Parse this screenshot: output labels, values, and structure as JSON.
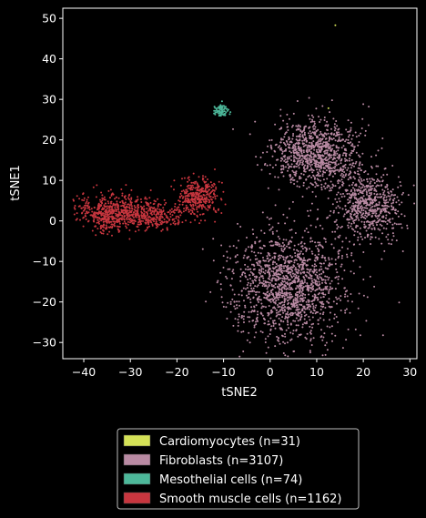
{
  "chart_data": {
    "type": "scatter",
    "title": "",
    "xlabel": "tSNE2",
    "ylabel": "tSNE1",
    "xlim": [
      -44.5,
      31.5
    ],
    "ylim": [
      -34,
      52.5
    ],
    "xticks": [
      -40,
      -30,
      -20,
      -10,
      0,
      10,
      20,
      30
    ],
    "yticks": [
      -30,
      -20,
      -10,
      0,
      10,
      20,
      30,
      40,
      50
    ],
    "grid": false,
    "background": "#000000",
    "foreground": "#ffffff",
    "legend_position": "below",
    "series": [
      {
        "name": "Cardiomyocytes (n=31)",
        "color": "#d4e157",
        "count": 31,
        "points": [
          [
            14,
            48.3
          ],
          [
            12.5,
            27.8
          ]
        ]
      },
      {
        "name": "Fibroblasts (n=3107)",
        "color": "#b98aa3",
        "count": 3107,
        "clusters": [
          {
            "center": [
              10,
              16.5
            ],
            "spread": [
              4.5,
              4.2
            ],
            "fraction": 0.32
          },
          {
            "center": [
              21,
              4
            ],
            "spread": [
              3.5,
              4.5
            ],
            "fraction": 0.2
          },
          {
            "center": [
              4,
              -16
            ],
            "spread": [
              6,
              6.5
            ],
            "fraction": 0.48
          }
        ]
      },
      {
        "name": "Mesothelial cells (n=74)",
        "color": "#4db89a",
        "count": 74,
        "clusters": [
          {
            "center": [
              -10.5,
              27.2
            ],
            "spread": [
              0.7,
              0.8
            ],
            "fraction": 1.0
          }
        ]
      },
      {
        "name": "Smooth muscle cells (n=1162)",
        "color": "#c8363f",
        "count": 1162,
        "clusters": [
          {
            "center": [
              -34,
              2
            ],
            "spread": [
              3.5,
              2.3
            ],
            "fraction": 0.45
          },
          {
            "center": [
              -25,
              1.5
            ],
            "spread": [
              3.2,
              1.8
            ],
            "fraction": 0.25
          },
          {
            "center": [
              -15.5,
              6
            ],
            "spread": [
              2.3,
              2.4
            ],
            "fraction": 0.3
          }
        ]
      }
    ]
  }
}
